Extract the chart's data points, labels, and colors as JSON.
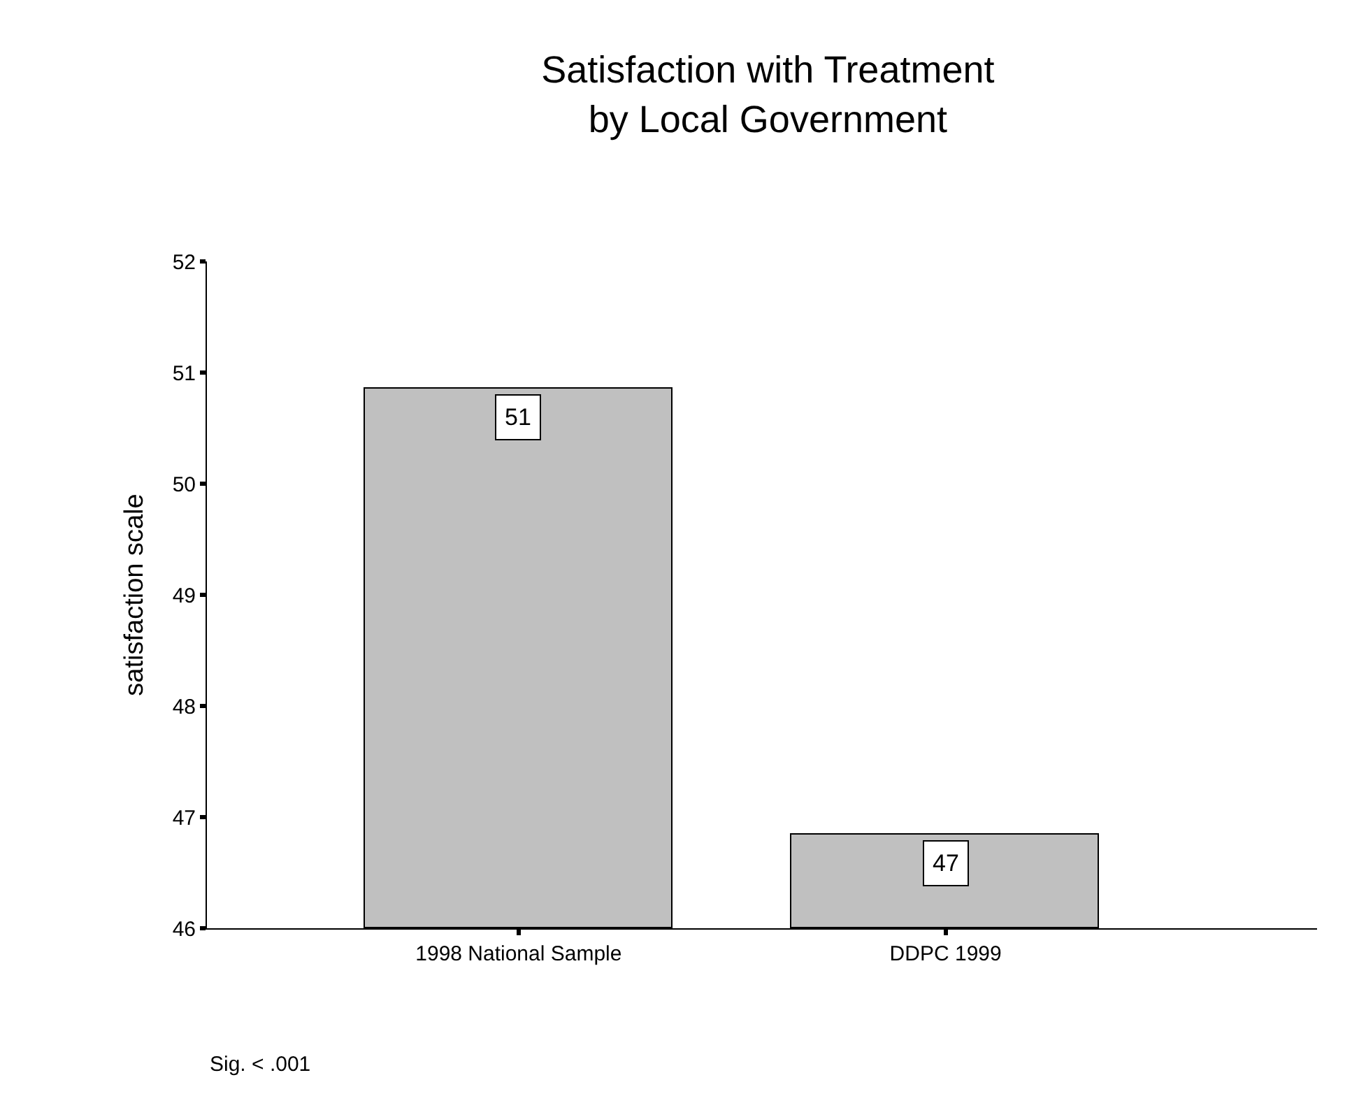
{
  "chart_data": {
    "type": "bar",
    "title": "Satisfaction with Treatment\nby Local Government",
    "ylabel": "satisfaction scale",
    "categories": [
      "1998 National Sample",
      "DDPC 1999"
    ],
    "values": [
      50.85,
      46.84
    ],
    "value_labels": [
      "51",
      "47"
    ],
    "color": "#c0c0c0",
    "ylim": [
      46,
      52
    ],
    "yticks": [
      46,
      47,
      48,
      49,
      50,
      51,
      52
    ],
    "annotations": [
      "Sig. < .001"
    ]
  }
}
